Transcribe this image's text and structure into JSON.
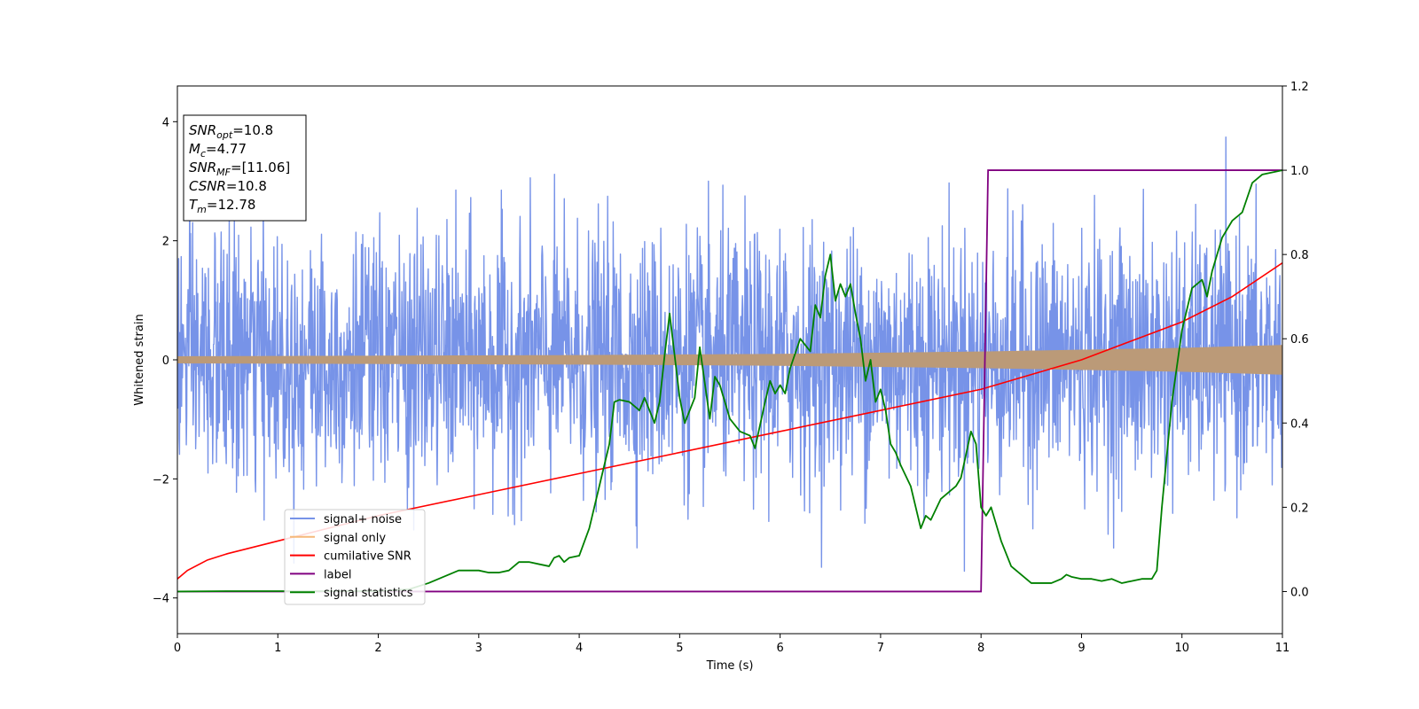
{
  "chart_data": {
    "type": "line",
    "xlabel": "Time (s)",
    "ylabel": "Whitened strain",
    "xlim": [
      0,
      11
    ],
    "ylim": [
      -4.6,
      4.6
    ],
    "y2lim": [
      -0.1,
      1.2
    ],
    "x_ticks": [
      0,
      1,
      2,
      3,
      4,
      5,
      6,
      7,
      8,
      9,
      10,
      11
    ],
    "x_tick_labels": [
      "0",
      "1",
      "2",
      "3",
      "4",
      "5",
      "6",
      "7",
      "8",
      "9",
      "10",
      "11"
    ],
    "y_ticks": [
      -4,
      -2,
      0,
      2,
      4
    ],
    "y_tick_labels": [
      "−4",
      "−2",
      "0",
      "2",
      "4"
    ],
    "y2_ticks": [
      0.0,
      0.2,
      0.4,
      0.6,
      0.8,
      1.0,
      1.2
    ],
    "y2_tick_labels": [
      "0.0",
      "0.2",
      "0.4",
      "0.6",
      "0.8",
      "1.0",
      "1.2"
    ],
    "grid": false,
    "legend_position": "lower-left",
    "colors": {
      "signal_noise": "#7793e8",
      "signal_only": "#f5b97a",
      "signal_overlap": "#bb9a78",
      "cumulative_snr": "#ff0000",
      "label": "#800080",
      "signal_statistics": "#008000"
    },
    "series": [
      {
        "name": "signal+ noise",
        "axis": "left",
        "noise_std": 1.05,
        "range": [
          -4.2,
          4.2
        ]
      },
      {
        "name": "signal only",
        "axis": "left",
        "amplitude": {
          "t": [
            0,
            2,
            4,
            6,
            8,
            10,
            11
          ],
          "a": [
            0.06,
            0.07,
            0.08,
            0.1,
            0.14,
            0.2,
            0.25
          ]
        }
      },
      {
        "name": "cumilative SNR",
        "axis": "right",
        "x": [
          0,
          0.1,
          0.3,
          0.5,
          1,
          2,
          3,
          4,
          5,
          6,
          7,
          8,
          9,
          10,
          10.5,
          11
        ],
        "y": [
          0.03,
          0.05,
          0.075,
          0.09,
          0.12,
          0.18,
          0.23,
          0.28,
          0.33,
          0.38,
          0.43,
          0.48,
          0.55,
          0.64,
          0.7,
          0.78
        ]
      },
      {
        "name": "label",
        "axis": "right",
        "x": [
          0,
          8.0,
          8.07,
          11
        ],
        "y": [
          0,
          0,
          1,
          1
        ]
      },
      {
        "name": "signal statistics",
        "axis": "right",
        "x": [
          0,
          0.5,
          1,
          1.5,
          2,
          2.3,
          2.5,
          2.7,
          2.75,
          2.8,
          2.9,
          3.0,
          3.1,
          3.2,
          3.3,
          3.4,
          3.5,
          3.6,
          3.7,
          3.75,
          3.8,
          3.85,
          3.9,
          4.0,
          4.1,
          4.2,
          4.3,
          4.35,
          4.4,
          4.5,
          4.6,
          4.65,
          4.7,
          4.75,
          4.8,
          4.85,
          4.9,
          5.0,
          5.05,
          5.15,
          5.2,
          5.3,
          5.35,
          5.4,
          5.5,
          5.6,
          5.7,
          5.75,
          5.85,
          5.9,
          5.95,
          6.0,
          6.05,
          6.1,
          6.2,
          6.3,
          6.35,
          6.4,
          6.45,
          6.5,
          6.55,
          6.6,
          6.65,
          6.7,
          6.75,
          6.8,
          6.85,
          6.9,
          6.95,
          7.0,
          7.05,
          7.1,
          7.15,
          7.2,
          7.3,
          7.4,
          7.45,
          7.5,
          7.6,
          7.7,
          7.75,
          7.8,
          7.9,
          7.95,
          8.0,
          8.05,
          8.1,
          8.2,
          8.3,
          8.4,
          8.5,
          8.6,
          8.7,
          8.8,
          8.85,
          8.9,
          9.0,
          9.1,
          9.2,
          9.3,
          9.4,
          9.5,
          9.6,
          9.7,
          9.75,
          9.8,
          9.9,
          10.0,
          10.1,
          10.2,
          10.25,
          10.3,
          10.4,
          10.5,
          10.6,
          10.7,
          10.8,
          11
        ],
        "y": [
          0,
          0.001,
          0.001,
          0.001,
          0.001,
          0.005,
          0.02,
          0.04,
          0.045,
          0.05,
          0.05,
          0.05,
          0.045,
          0.045,
          0.05,
          0.07,
          0.07,
          0.065,
          0.06,
          0.08,
          0.085,
          0.07,
          0.08,
          0.085,
          0.15,
          0.25,
          0.35,
          0.45,
          0.455,
          0.45,
          0.43,
          0.46,
          0.43,
          0.4,
          0.45,
          0.56,
          0.66,
          0.46,
          0.4,
          0.46,
          0.58,
          0.41,
          0.51,
          0.49,
          0.41,
          0.38,
          0.37,
          0.34,
          0.45,
          0.5,
          0.47,
          0.49,
          0.47,
          0.53,
          0.6,
          0.57,
          0.68,
          0.65,
          0.75,
          0.8,
          0.69,
          0.73,
          0.7,
          0.73,
          0.66,
          0.6,
          0.5,
          0.55,
          0.45,
          0.48,
          0.43,
          0.35,
          0.33,
          0.3,
          0.25,
          0.15,
          0.18,
          0.17,
          0.22,
          0.24,
          0.25,
          0.27,
          0.38,
          0.35,
          0.2,
          0.18,
          0.2,
          0.12,
          0.06,
          0.04,
          0.02,
          0.02,
          0.02,
          0.03,
          0.04,
          0.035,
          0.03,
          0.03,
          0.025,
          0.03,
          0.02,
          0.025,
          0.03,
          0.03,
          0.05,
          0.2,
          0.45,
          0.62,
          0.72,
          0.74,
          0.7,
          0.76,
          0.84,
          0.88,
          0.9,
          0.97,
          0.99,
          1.0
        ]
      }
    ],
    "annotation_box": {
      "lines": [
        {
          "symbol": "SNR",
          "sub": "opt",
          "value": "=10.8"
        },
        {
          "symbol": "M",
          "sub": "c",
          "value": "=4.77"
        },
        {
          "symbol": "SNR",
          "sub": "MF",
          "value": "=[11.06]"
        },
        {
          "symbol": "CSNR",
          "sub": "",
          "value": "=10.8"
        },
        {
          "symbol": "T",
          "sub": "m",
          "value": "=12.78"
        }
      ]
    }
  }
}
